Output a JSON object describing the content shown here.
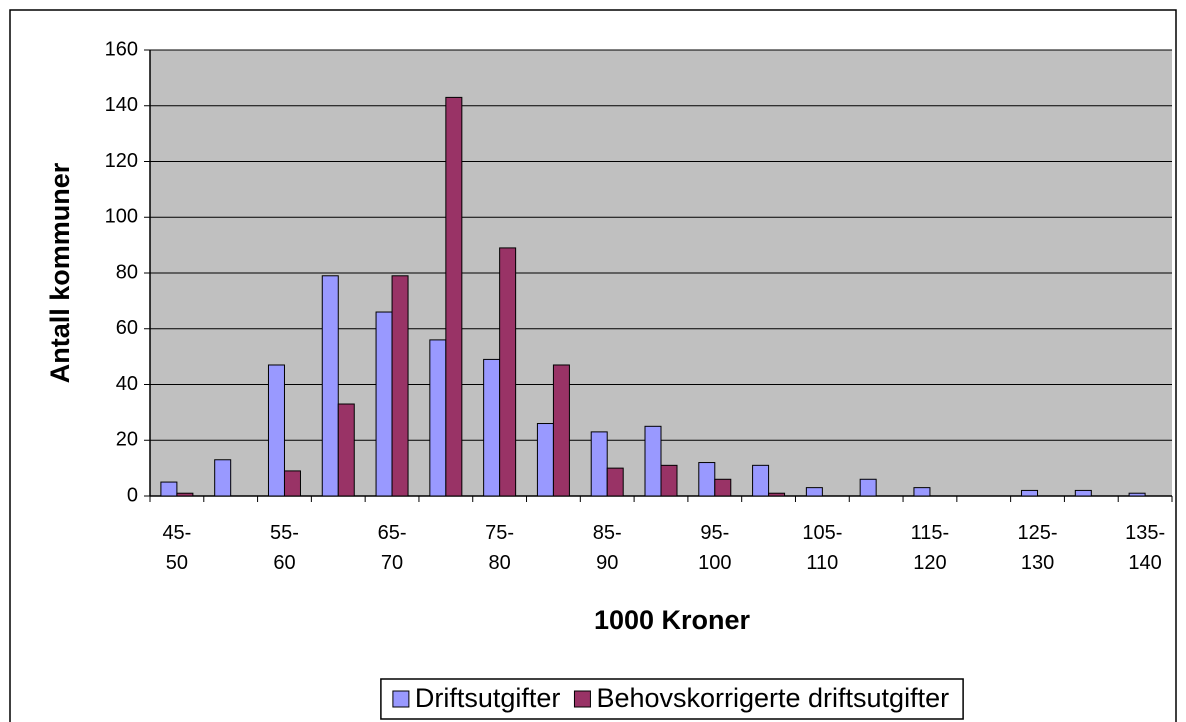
{
  "chart_data": {
    "type": "bar",
    "x_label": "1000 Kroner",
    "y_label": "Antall kommuner",
    "categories": [
      "45-50",
      null,
      "55-60",
      null,
      "65-70",
      null,
      "75-80",
      null,
      "85-90",
      null,
      "95-100",
      null,
      "105-110",
      null,
      "115-120",
      null,
      "125-130",
      null,
      "135-140"
    ],
    "series": [
      {
        "name": "Driftsutgifter",
        "color": "#9999ff",
        "values": [
          5,
          13,
          47,
          79,
          66,
          56,
          49,
          26,
          23,
          25,
          12,
          11,
          3,
          6,
          3,
          0,
          2,
          2,
          1
        ]
      },
      {
        "name": "Behovskorrigerte driftsutgifter",
        "color": "#993366",
        "values": [
          1,
          0,
          9,
          33,
          79,
          143,
          89,
          47,
          10,
          11,
          6,
          1,
          0,
          0,
          0,
          0,
          0,
          0,
          0
        ]
      }
    ],
    "ylim": [
      0,
      160
    ],
    "yticks": [
      0,
      20,
      40,
      60,
      80,
      100,
      120,
      140,
      160
    ],
    "grid": true,
    "plot_background": "#c0c0c0",
    "legend": "bottom"
  }
}
